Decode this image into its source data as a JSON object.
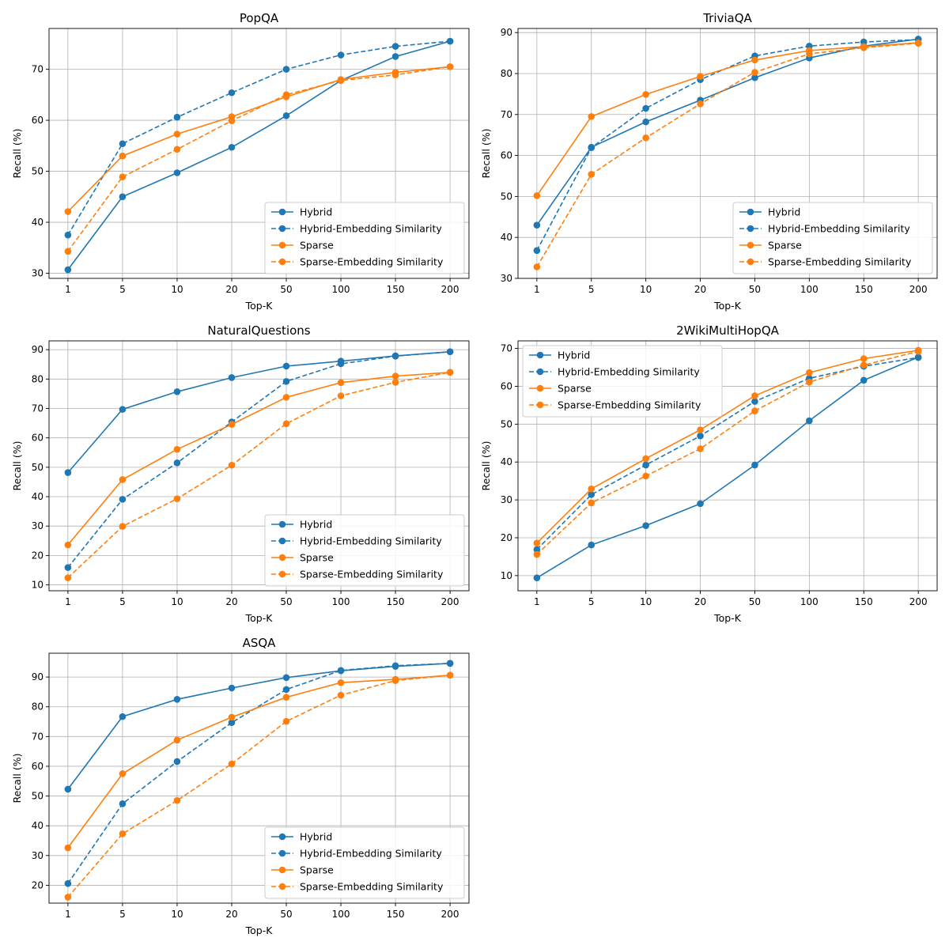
{
  "colors": {
    "hybrid": "#1f77b4",
    "sparse": "#ff7f0e",
    "grid": "#b0b0b0",
    "background": "#ffffff"
  },
  "chart_data": [
    {
      "type": "line",
      "title": "PopQA",
      "xlabel": "Top-K",
      "ylabel": "Recall (%)",
      "categories": [
        "1",
        "5",
        "10",
        "20",
        "50",
        "100",
        "150",
        "200"
      ],
      "ylim": [
        29,
        78
      ],
      "yticks": [
        30,
        40,
        50,
        60,
        70
      ],
      "grid": true,
      "legend_position": "lower-right",
      "series": [
        {
          "name": "Hybrid",
          "color": "#1f77b4",
          "style": "solid",
          "values": [
            30.7,
            45.0,
            49.7,
            54.7,
            60.9,
            67.8,
            72.5,
            75.5
          ]
        },
        {
          "name": "Hybrid-Embedding Similarity",
          "color": "#1f77b4",
          "style": "dashed",
          "values": [
            37.5,
            55.4,
            60.6,
            65.4,
            70.0,
            72.8,
            74.5,
            75.5
          ]
        },
        {
          "name": "Sparse",
          "color": "#ff7f0e",
          "style": "solid",
          "values": [
            42.1,
            53.0,
            57.3,
            60.7,
            64.6,
            68.0,
            69.4,
            70.5
          ]
        },
        {
          "name": "Sparse-Embedding Similarity",
          "color": "#ff7f0e",
          "style": "dashed",
          "values": [
            34.3,
            48.9,
            54.3,
            59.9,
            65.0,
            67.8,
            68.9,
            70.5
          ]
        }
      ]
    },
    {
      "type": "line",
      "title": "TriviaQA",
      "xlabel": "Top-K",
      "ylabel": "Recall (%)",
      "categories": [
        "1",
        "5",
        "10",
        "20",
        "50",
        "100",
        "150",
        "200"
      ],
      "ylim": [
        30,
        91
      ],
      "yticks": [
        30,
        40,
        50,
        60,
        70,
        80,
        90
      ],
      "grid": true,
      "legend_position": "lower-right",
      "series": [
        {
          "name": "Hybrid",
          "color": "#1f77b4",
          "style": "solid",
          "values": [
            43.0,
            62.0,
            68.2,
            73.5,
            79.0,
            83.8,
            86.7,
            88.4
          ]
        },
        {
          "name": "Hybrid-Embedding Similarity",
          "color": "#1f77b4",
          "style": "dashed",
          "values": [
            36.8,
            61.9,
            71.5,
            78.5,
            84.3,
            86.7,
            87.7,
            88.3
          ]
        },
        {
          "name": "Sparse",
          "color": "#ff7f0e",
          "style": "solid",
          "values": [
            50.2,
            69.5,
            74.9,
            79.3,
            83.3,
            85.6,
            86.6,
            87.5
          ]
        },
        {
          "name": "Sparse-Embedding Similarity",
          "color": "#ff7f0e",
          "style": "dashed",
          "values": [
            32.8,
            55.4,
            64.3,
            72.6,
            80.3,
            84.8,
            86.3,
            87.4
          ]
        }
      ]
    },
    {
      "type": "line",
      "title": "NaturalQuestions",
      "xlabel": "Top-K",
      "ylabel": "Recall (%)",
      "categories": [
        "1",
        "5",
        "10",
        "20",
        "50",
        "100",
        "150",
        "200"
      ],
      "ylim": [
        8,
        93
      ],
      "yticks": [
        10,
        20,
        30,
        40,
        50,
        60,
        70,
        80,
        90
      ],
      "grid": true,
      "legend_position": "lower-right",
      "series": [
        {
          "name": "Hybrid",
          "color": "#1f77b4",
          "style": "solid",
          "values": [
            48.2,
            69.7,
            75.7,
            80.5,
            84.4,
            86.1,
            87.9,
            89.3
          ]
        },
        {
          "name": "Hybrid-Embedding Similarity",
          "color": "#1f77b4",
          "style": "dashed",
          "values": [
            15.9,
            39.1,
            51.5,
            65.4,
            79.2,
            85.2,
            87.8,
            89.3
          ]
        },
        {
          "name": "Sparse",
          "color": "#ff7f0e",
          "style": "solid",
          "values": [
            23.6,
            45.8,
            56.1,
            64.6,
            73.8,
            78.8,
            81.0,
            82.3
          ]
        },
        {
          "name": "Sparse-Embedding Similarity",
          "color": "#ff7f0e",
          "style": "dashed",
          "values": [
            12.4,
            29.9,
            39.3,
            50.7,
            64.8,
            74.3,
            78.9,
            82.3
          ]
        }
      ]
    },
    {
      "type": "line",
      "title": "2WikiMultiHopQA",
      "xlabel": "Top-K",
      "ylabel": "Recall (%)",
      "categories": [
        "1",
        "5",
        "10",
        "20",
        "50",
        "100",
        "150",
        "200"
      ],
      "ylim": [
        6,
        72
      ],
      "yticks": [
        10,
        20,
        30,
        40,
        50,
        60,
        70
      ],
      "grid": true,
      "legend_position": "top-left",
      "series": [
        {
          "name": "Hybrid",
          "color": "#1f77b4",
          "style": "solid",
          "values": [
            9.4,
            18.1,
            23.2,
            29.0,
            39.2,
            50.9,
            61.6,
            67.7
          ]
        },
        {
          "name": "Hybrid-Embedding Similarity",
          "color": "#1f77b4",
          "style": "dashed",
          "values": [
            16.9,
            31.4,
            39.2,
            46.9,
            56.0,
            62.1,
            65.3,
            67.6
          ]
        },
        {
          "name": "Sparse",
          "color": "#ff7f0e",
          "style": "solid",
          "values": [
            18.6,
            32.9,
            40.9,
            48.5,
            57.5,
            63.6,
            67.3,
            69.5
          ]
        },
        {
          "name": "Sparse-Embedding Similarity",
          "color": "#ff7f0e",
          "style": "dashed",
          "values": [
            15.6,
            29.2,
            36.3,
            43.5,
            53.5,
            61.1,
            65.6,
            69.2
          ]
        }
      ]
    },
    {
      "type": "line",
      "title": "ASQA",
      "xlabel": "Top-K",
      "ylabel": "Recall (%)",
      "categories": [
        "1",
        "5",
        "10",
        "20",
        "50",
        "100",
        "150",
        "200"
      ],
      "ylim": [
        14,
        98
      ],
      "yticks": [
        20,
        30,
        40,
        50,
        60,
        70,
        80,
        90
      ],
      "grid": true,
      "legend_position": "lower-right",
      "series": [
        {
          "name": "Hybrid",
          "color": "#1f77b4",
          "style": "solid",
          "values": [
            52.3,
            76.7,
            82.5,
            86.3,
            89.8,
            92.1,
            93.6,
            94.6
          ]
        },
        {
          "name": "Hybrid-Embedding Similarity",
          "color": "#1f77b4",
          "style": "dashed",
          "values": [
            20.6,
            47.4,
            61.6,
            74.7,
            85.8,
            92.2,
            93.8,
            94.6
          ]
        },
        {
          "name": "Sparse",
          "color": "#ff7f0e",
          "style": "solid",
          "values": [
            32.6,
            57.5,
            68.8,
            76.5,
            83.2,
            88.1,
            89.2,
            90.6
          ]
        },
        {
          "name": "Sparse-Embedding Similarity",
          "color": "#ff7f0e",
          "style": "dashed",
          "values": [
            16.0,
            37.3,
            48.5,
            60.8,
            75.1,
            83.9,
            88.8,
            90.6
          ]
        }
      ]
    }
  ]
}
